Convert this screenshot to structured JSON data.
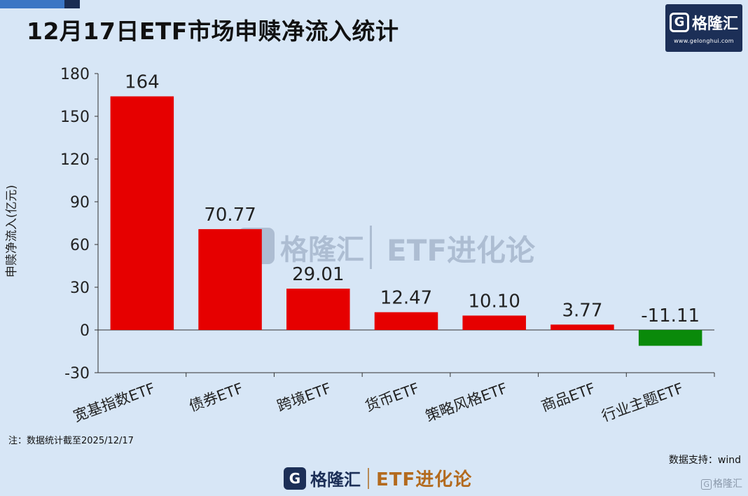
{
  "header": {
    "title": "12月17日ETF市场申赎净流入统计"
  },
  "logo": {
    "name": "格隆汇",
    "mark": "G",
    "url": "www.gelonghui.com"
  },
  "watermark": {
    "brand": "格隆汇",
    "text": "ETF进化论"
  },
  "chart_data": {
    "type": "bar",
    "title": "12月17日ETF市场申赎净流入统计",
    "categories": [
      "宽基指数ETF",
      "债券ETF",
      "跨境ETF",
      "货币ETF",
      "策略风格ETF",
      "商品ETF",
      "行业主题ETF"
    ],
    "values": [
      164,
      70.77,
      29.01,
      12.47,
      10.1,
      3.77,
      -11.11
    ],
    "data_labels": [
      "164",
      "70.77",
      "29.01",
      "12.47",
      "10.10",
      "3.77",
      "-11.11"
    ],
    "ylabel": "申赎净流入(亿元)",
    "ylim": [
      -30,
      180
    ],
    "yticks": [
      180,
      150,
      120,
      90,
      60,
      30,
      0,
      -30
    ],
    "grid": false,
    "colors": {
      "positive": "#e60000",
      "negative": "#0a8a0a"
    }
  },
  "footer": {
    "note": "注：数据统计截至2025/12/17",
    "source": "数据支持：wind",
    "brand": "格隆汇",
    "brand_mark": "G",
    "series_name": "ETF进化论",
    "corner_mark": "G",
    "corner_brand": "格隆汇"
  }
}
